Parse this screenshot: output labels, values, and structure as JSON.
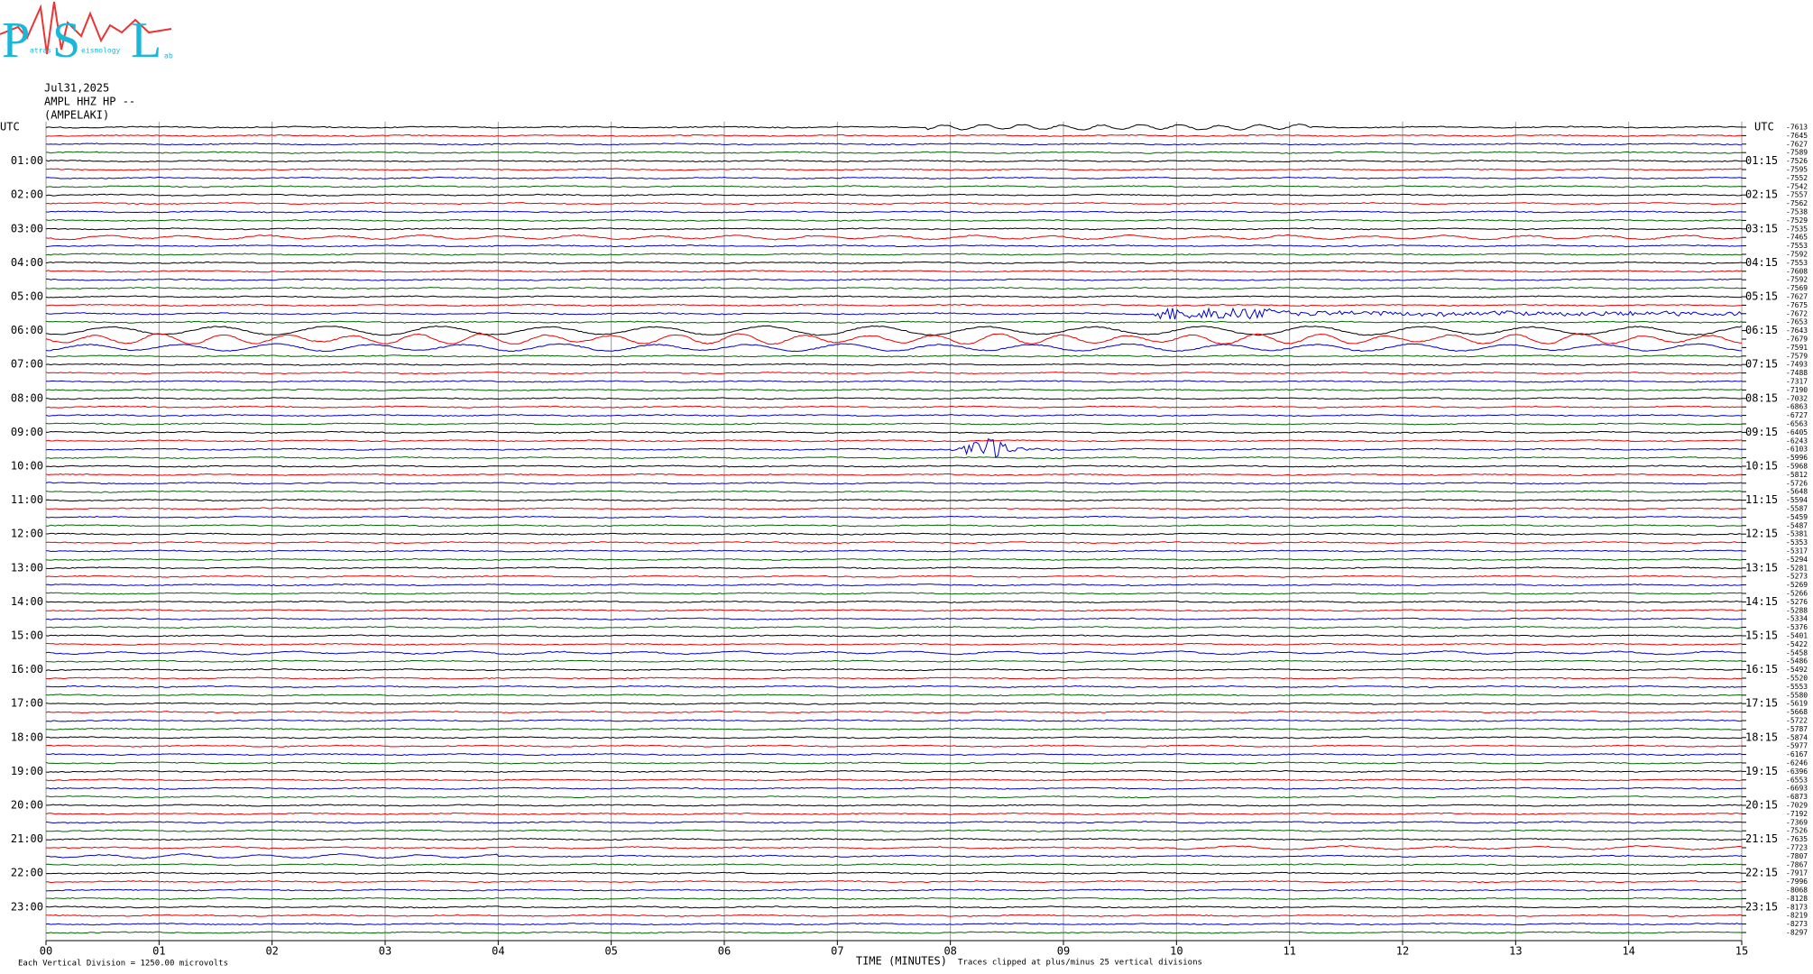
{
  "logo": {
    "p": "P",
    "p_rest": "atras",
    "s": "S",
    "s_rest": "eismology",
    "l": "L",
    "l_rest": "ab"
  },
  "header": {
    "date": "Jul31,2025",
    "station": "AMPL HHZ HP --",
    "location": "(AMPELAKI)"
  },
  "left_axis": {
    "title": "UTC",
    "labels": [
      "01:00",
      "02:00",
      "03:00",
      "04:00",
      "05:00",
      "06:00",
      "07:00",
      "08:00",
      "09:00",
      "10:00",
      "11:00",
      "12:00",
      "13:00",
      "14:00",
      "15:00",
      "16:00",
      "17:00",
      "18:00",
      "19:00",
      "20:00",
      "21:00",
      "22:00",
      "23:00"
    ]
  },
  "right_axis": {
    "title": "UTC",
    "labels": [
      "01:15",
      "02:15",
      "03:15",
      "04:15",
      "05:15",
      "06:15",
      "07:15",
      "08:15",
      "09:15",
      "10:15",
      "11:15",
      "12:15",
      "13:15",
      "14:15",
      "15:15",
      "16:15",
      "17:15",
      "18:15",
      "19:15",
      "20:15",
      "21:15",
      "22:15",
      "23:15"
    ],
    "offsets": [
      -7613,
      -7645,
      -7627,
      -7589,
      -7526,
      -7595,
      -7552,
      -7542,
      -7557,
      -7562,
      -7538,
      -7529,
      -7535,
      -7465,
      -7553,
      -7592,
      -7553,
      -7608,
      -7592,
      -7569,
      -7627,
      -7675,
      -7672,
      -7653,
      -7643,
      -7679,
      -7591,
      -7579,
      -7493,
      -7488,
      -7317,
      -7190,
      -7032,
      -6863,
      -6727,
      -6563,
      -6405,
      -6243,
      -6103,
      -5996,
      -5968,
      -5812,
      -5726,
      -5648,
      -5594,
      -5587,
      -5459,
      -5487,
      -5381,
      -5353,
      -5317,
      -5294,
      -5281,
      -5273,
      -5269,
      -5266,
      -5276,
      -5288,
      -5334,
      -5376,
      -5401,
      -5422,
      -5458,
      -5486,
      -5492,
      -5520,
      -5553,
      -5580,
      -5619,
      -5668,
      -5722,
      -5787,
      -5874,
      -5977,
      -6167,
      -6246,
      -6396,
      -6553,
      -6693,
      -6873,
      -7029,
      -7192,
      -7369,
      -7526,
      -7635,
      -7723,
      -7807,
      -7867,
      -7917,
      -7996,
      -8068,
      -8128,
      -8173,
      -8219,
      -8273,
      -8297
    ]
  },
  "x_axis": {
    "title": "TIME (MINUTES)",
    "ticks": [
      "00",
      "01",
      "02",
      "03",
      "04",
      "05",
      "06",
      "07",
      "08",
      "09",
      "10",
      "11",
      "12",
      "13",
      "14",
      "15"
    ]
  },
  "footer": {
    "division": "Each Vertical Division = 1250.00 microvolts",
    "clipping": "Traces clipped at plus/minus 25 vertical divisions"
  }
}
